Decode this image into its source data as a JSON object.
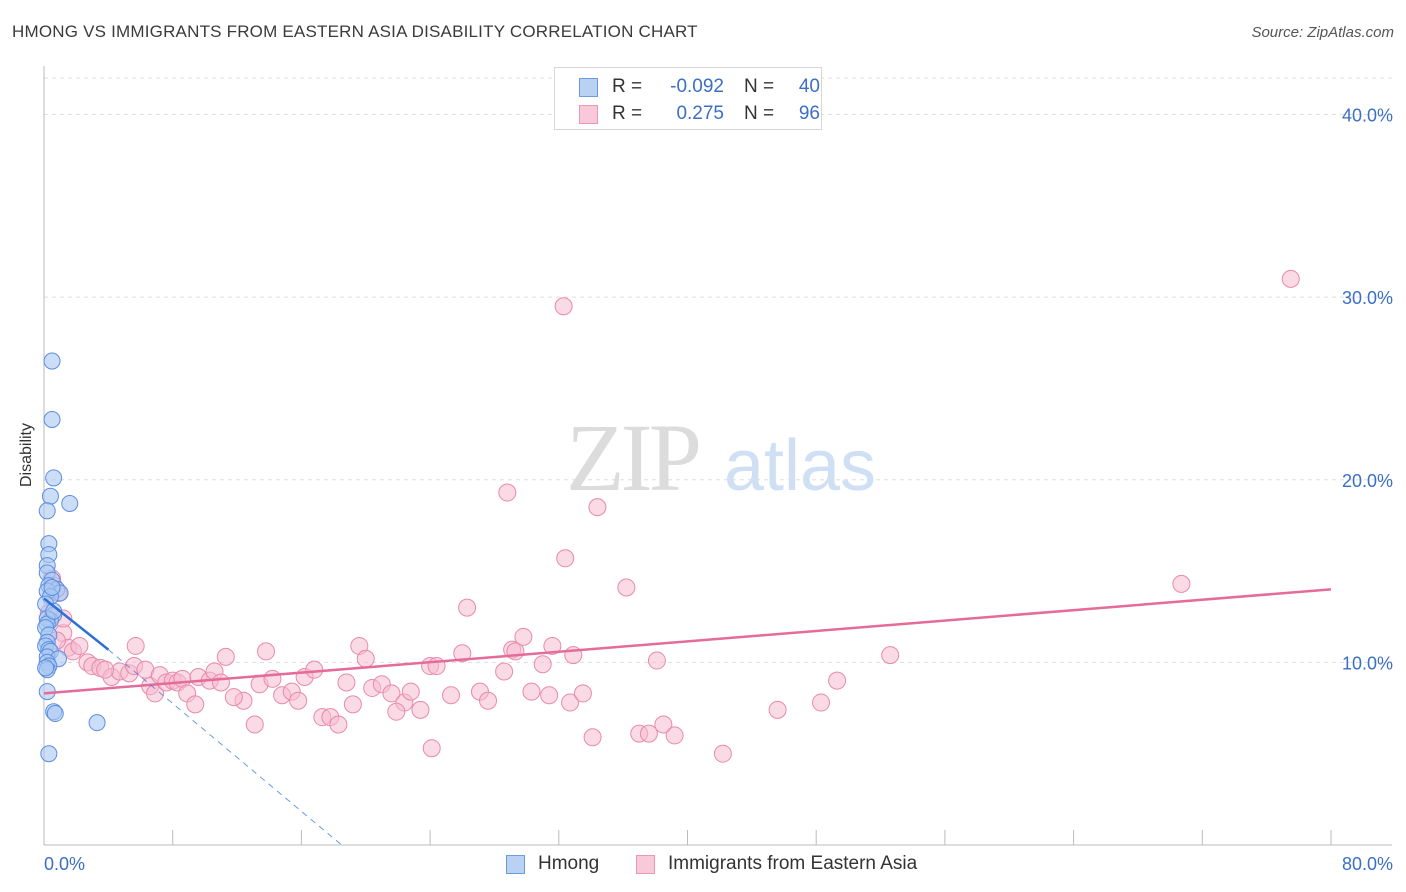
{
  "title": "HMONG VS IMMIGRANTS FROM EASTERN ASIA DISABILITY CORRELATION CHART",
  "source": "Source: ZipAtlas.com",
  "watermark": {
    "zip": "ZIP",
    "atlas": "atlas"
  },
  "legend": {
    "hmong": {
      "r_label": "R =",
      "r_value": "-0.092",
      "n_label": "N =",
      "n_value": "40"
    },
    "eastern_asia": {
      "r_label": "R =",
      "r_value": "0.275",
      "n_label": "N =",
      "n_value": "96"
    }
  },
  "colors": {
    "hmong_fill": "#aac8f2",
    "hmong_stroke": "#5b8ee0",
    "hmong_line": "#2e6fd6",
    "asia_fill": "#f6bcd0",
    "asia_stroke": "#e98aab",
    "asia_line": "#e56b98",
    "axis_value": "#3b6fc5",
    "grid": "#dddddd"
  },
  "chart_data": {
    "type": "scatter",
    "title": "HMONG VS IMMIGRANTS FROM EASTERN ASIA DISABILITY CORRELATION CHART",
    "xlabel": "",
    "ylabel": "Disability",
    "xlim": [
      0,
      80
    ],
    "ylim": [
      0,
      42
    ],
    "x_tick_labels": [
      "0.0%",
      "80.0%"
    ],
    "y_ticks": [
      10,
      20,
      30,
      40
    ],
    "y_tick_labels": [
      "10.0%",
      "20.0%",
      "30.0%",
      "40.0%"
    ],
    "grid": "horizontal dashed",
    "legend_position": "top-center and bottom",
    "series": [
      {
        "name": "Hmong",
        "r": -0.092,
        "n": 40,
        "trend": {
          "x": [
            0,
            4
          ],
          "y": [
            13.5,
            10.7
          ]
        },
        "trend_extension": {
          "x": [
            4,
            18.5
          ],
          "y": [
            10.7,
            0
          ]
        },
        "points": [
          [
            0.5,
            26.5
          ],
          [
            0.5,
            23.3
          ],
          [
            0.6,
            20.1
          ],
          [
            0.4,
            19.1
          ],
          [
            0.2,
            18.3
          ],
          [
            1.6,
            18.7
          ],
          [
            0.3,
            16.5
          ],
          [
            0.3,
            15.9
          ],
          [
            0.2,
            15.3
          ],
          [
            0.2,
            14.9
          ],
          [
            0.5,
            14.5
          ],
          [
            0.3,
            14.2
          ],
          [
            0.8,
            14.0
          ],
          [
            1.0,
            13.8
          ],
          [
            0.2,
            13.9
          ],
          [
            0.4,
            13.6
          ],
          [
            0.1,
            13.2
          ],
          [
            0.6,
            12.6
          ],
          [
            0.4,
            12.3
          ],
          [
            0.2,
            12.4
          ],
          [
            0.2,
            12.1
          ],
          [
            0.1,
            11.9
          ],
          [
            0.3,
            11.5
          ],
          [
            0.2,
            11.1
          ],
          [
            0.1,
            10.9
          ],
          [
            0.3,
            10.7
          ],
          [
            0.4,
            10.6
          ],
          [
            0.2,
            10.3
          ],
          [
            0.9,
            10.2
          ],
          [
            0.2,
            10.0
          ],
          [
            0.3,
            9.8
          ],
          [
            0.2,
            9.6
          ],
          [
            0.1,
            9.7
          ],
          [
            0.2,
            8.4
          ],
          [
            0.6,
            7.3
          ],
          [
            0.7,
            7.2
          ],
          [
            3.3,
            6.7
          ],
          [
            0.3,
            5.0
          ],
          [
            0.5,
            14.1
          ],
          [
            0.6,
            12.8
          ]
        ]
      },
      {
        "name": "Immigrants from Eastern Asia",
        "r": 0.275,
        "n": 96,
        "trend": {
          "x": [
            0,
            80
          ],
          "y": [
            8.3,
            14.0
          ]
        },
        "points": [
          [
            0.5,
            14.6
          ],
          [
            0.6,
            14.2
          ],
          [
            0.9,
            13.8
          ],
          [
            0.3,
            12.7
          ],
          [
            1.2,
            11.6
          ],
          [
            1.5,
            10.8
          ],
          [
            1.8,
            10.6
          ],
          [
            2.2,
            10.9
          ],
          [
            2.7,
            10.0
          ],
          [
            3.0,
            9.8
          ],
          [
            3.5,
            9.7
          ],
          [
            4.2,
            9.2
          ],
          [
            4.7,
            9.5
          ],
          [
            5.3,
            9.4
          ],
          [
            5.6,
            9.8
          ],
          [
            5.7,
            10.9
          ],
          [
            6.3,
            9.6
          ],
          [
            6.6,
            8.7
          ],
          [
            6.9,
            8.3
          ],
          [
            7.2,
            9.3
          ],
          [
            7.6,
            8.9
          ],
          [
            8.0,
            9.0
          ],
          [
            8.3,
            8.9
          ],
          [
            8.6,
            9.1
          ],
          [
            8.9,
            8.3
          ],
          [
            9.6,
            9.2
          ],
          [
            10.3,
            9.0
          ],
          [
            10.6,
            9.5
          ],
          [
            11.0,
            8.9
          ],
          [
            11.3,
            10.3
          ],
          [
            12.4,
            7.9
          ],
          [
            13.1,
            6.6
          ],
          [
            13.4,
            8.8
          ],
          [
            13.8,
            10.6
          ],
          [
            14.2,
            9.1
          ],
          [
            14.8,
            8.2
          ],
          [
            15.4,
            8.4
          ],
          [
            16.2,
            9.2
          ],
          [
            16.8,
            9.6
          ],
          [
            17.3,
            7.0
          ],
          [
            17.8,
            7.0
          ],
          [
            18.3,
            6.6
          ],
          [
            18.8,
            8.9
          ],
          [
            19.2,
            7.7
          ],
          [
            19.6,
            10.9
          ],
          [
            20.0,
            10.2
          ],
          [
            20.4,
            8.6
          ],
          [
            21.0,
            8.8
          ],
          [
            21.6,
            8.3
          ],
          [
            22.4,
            7.8
          ],
          [
            22.8,
            8.4
          ],
          [
            23.4,
            7.4
          ],
          [
            24.0,
            9.8
          ],
          [
            24.4,
            9.8
          ],
          [
            25.3,
            8.2
          ],
          [
            26.0,
            10.5
          ],
          [
            26.3,
            13.0
          ],
          [
            27.1,
            8.4
          ],
          [
            27.6,
            7.9
          ],
          [
            28.6,
            9.5
          ],
          [
            28.8,
            19.3
          ],
          [
            29.1,
            10.7
          ],
          [
            29.3,
            10.6
          ],
          [
            29.8,
            11.4
          ],
          [
            30.3,
            8.4
          ],
          [
            31.0,
            9.9
          ],
          [
            31.4,
            8.2
          ],
          [
            31.6,
            10.9
          ],
          [
            32.7,
            7.8
          ],
          [
            32.3,
            29.5
          ],
          [
            32.4,
            15.7
          ],
          [
            32.9,
            10.4
          ],
          [
            33.5,
            8.3
          ],
          [
            34.1,
            5.9
          ],
          [
            34.4,
            18.5
          ],
          [
            36.2,
            14.1
          ],
          [
            37.0,
            6.1
          ],
          [
            37.6,
            6.1
          ],
          [
            38.1,
            10.1
          ],
          [
            38.5,
            6.6
          ],
          [
            39.2,
            6.0
          ],
          [
            42.2,
            5.0
          ],
          [
            45.6,
            7.4
          ],
          [
            48.3,
            7.8
          ],
          [
            49.3,
            9.0
          ],
          [
            52.6,
            10.4
          ],
          [
            70.7,
            14.3
          ],
          [
            77.5,
            31.0
          ],
          [
            15.8,
            7.9
          ],
          [
            24.1,
            5.3
          ],
          [
            9.4,
            7.7
          ],
          [
            3.8,
            9.6
          ],
          [
            21.9,
            7.3
          ],
          [
            11.8,
            8.1
          ],
          [
            1.2,
            12.4
          ],
          [
            0.8,
            11.2
          ]
        ]
      }
    ]
  }
}
